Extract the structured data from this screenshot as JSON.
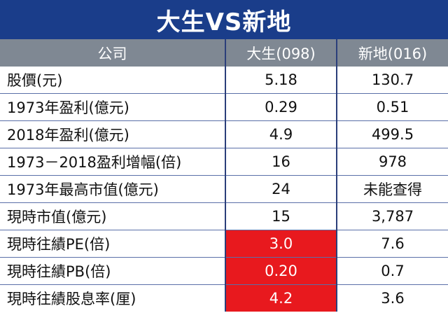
{
  "title": "大生VS新地",
  "columns": [
    "公司",
    "大生(098)",
    "新地(016)"
  ],
  "rows": [
    {
      "label": "股價(元)",
      "tai_sang": "5.18",
      "sun_hung_kai": "130.7",
      "highlight": false
    },
    {
      "label": "1973年盈利(億元)",
      "tai_sang": "0.29",
      "sun_hung_kai": "0.51",
      "highlight": false
    },
    {
      "label": "2018年盈利(億元)",
      "tai_sang": "4.9",
      "sun_hung_kai": "499.5",
      "highlight": false
    },
    {
      "label": "1973－2018盈利增幅(倍)",
      "tai_sang": "16",
      "sun_hung_kai": "978",
      "highlight": false
    },
    {
      "label": "1973年最高市值(億元)",
      "tai_sang": "24",
      "sun_hung_kai": "未能查得",
      "highlight": false
    },
    {
      "label": "現時市值(億元)",
      "tai_sang": "15",
      "sun_hung_kai": "3,787",
      "highlight": false
    },
    {
      "label": "現時往績PE(倍)",
      "tai_sang": "3.0",
      "sun_hung_kai": "7.6",
      "highlight": true
    },
    {
      "label": "現時往績PB(倍)",
      "tai_sang": "0.20",
      "sun_hung_kai": "0.7",
      "highlight": true
    },
    {
      "label": "現時往績股息率(厘)",
      "tai_sang": "4.2",
      "sun_hung_kai": "3.6",
      "highlight": true
    }
  ],
  "colors": {
    "title_bg": "#1a3d8a",
    "header_bg": "#7f8893",
    "highlight_bg": "#e8191e"
  }
}
